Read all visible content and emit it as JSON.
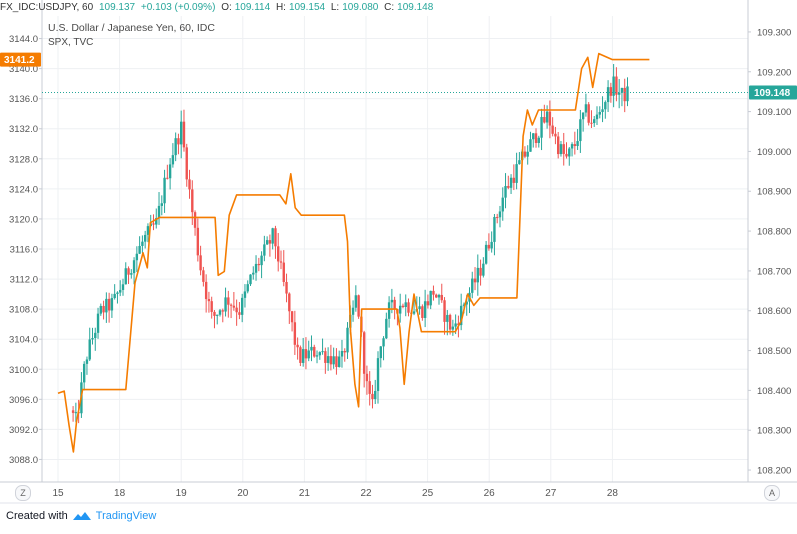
{
  "header": {
    "symbol": "FX_IDC:USDJPY, 60",
    "last": "109.137",
    "change": "+0.103 (+0.09%)",
    "o_label": "O:",
    "o_value": "109.114",
    "h_label": "H:",
    "h_value": "109.154",
    "l_label": "L:",
    "l_value": "109.080",
    "c_label": "C:",
    "c_value": "109.148"
  },
  "chart_title": "U.S. Dollar / Japanese Yen, 60, IDC",
  "chart_subtitle": "SPX, TVC",
  "footer": {
    "created_with": "Created with",
    "brand": "TradingView"
  },
  "controls": {
    "left_scale_button": "Z",
    "right_scale_button": "A"
  },
  "colors": {
    "up": "#26a69a",
    "down": "#ef5350",
    "spx_line": "#f57c00",
    "price_line": "#26a69a",
    "grid": "#eef0f3",
    "axis_text": "#555555"
  },
  "chart_data": {
    "type": "candlestick",
    "series": [
      {
        "name": "FX_IDC:USDJPY, 60",
        "axis": "right"
      },
      {
        "name": "SPX",
        "axis": "left"
      }
    ],
    "x_ticks": [
      "15",
      "18",
      "19",
      "20",
      "21",
      "22",
      "25",
      "26",
      "27",
      "28"
    ],
    "left_axis": {
      "ticks": [
        3088.0,
        3092.0,
        3096.0,
        3100.0,
        3104.0,
        3108.0,
        3112.0,
        3116.0,
        3120.0,
        3124.0,
        3128.0,
        3132.0,
        3136.0,
        3140.0,
        3144.0
      ],
      "range": [
        3085.0,
        3147.0
      ]
    },
    "right_axis": {
      "ticks": [
        108.2,
        108.3,
        108.4,
        108.5,
        108.6,
        108.7,
        108.8,
        108.9,
        109.0,
        109.1,
        109.2,
        109.3
      ],
      "range": [
        108.17,
        109.34
      ]
    },
    "left_last_label": "3141.2",
    "left_last_value": 3141.2,
    "right_last_label": "109.148",
    "right_last_value": 109.148,
    "spx_line": [
      {
        "x": 0.0,
        "y": 3096.8
      },
      {
        "x": 0.1,
        "y": 3097.1
      },
      {
        "x": 0.18,
        "y": 3092.5
      },
      {
        "x": 0.25,
        "y": 3089.0
      },
      {
        "x": 0.3,
        "y": 3093.0
      },
      {
        "x": 0.4,
        "y": 3097.3
      },
      {
        "x": 1.1,
        "y": 3097.3
      },
      {
        "x": 1.25,
        "y": 3111.5
      },
      {
        "x": 1.38,
        "y": 3115.5
      },
      {
        "x": 1.45,
        "y": 3113.5
      },
      {
        "x": 1.5,
        "y": 3119.5
      },
      {
        "x": 1.65,
        "y": 3120.2
      },
      {
        "x": 2.55,
        "y": 3120.2
      },
      {
        "x": 2.6,
        "y": 3112.5
      },
      {
        "x": 2.7,
        "y": 3113.0
      },
      {
        "x": 2.78,
        "y": 3120.5
      },
      {
        "x": 2.9,
        "y": 3123.2
      },
      {
        "x": 3.6,
        "y": 3123.2
      },
      {
        "x": 3.7,
        "y": 3122.0
      },
      {
        "x": 3.78,
        "y": 3126.0
      },
      {
        "x": 3.85,
        "y": 3121.5
      },
      {
        "x": 3.95,
        "y": 3120.5
      },
      {
        "x": 4.65,
        "y": 3120.5
      },
      {
        "x": 4.7,
        "y": 3117.0
      },
      {
        "x": 4.75,
        "y": 3105.0
      },
      {
        "x": 4.82,
        "y": 3098.0
      },
      {
        "x": 4.88,
        "y": 3095.0
      },
      {
        "x": 4.93,
        "y": 3108.0
      },
      {
        "x": 5.5,
        "y": 3108.0
      },
      {
        "x": 5.55,
        "y": 3105.5
      },
      {
        "x": 5.62,
        "y": 3098.0
      },
      {
        "x": 5.7,
        "y": 3105.0
      },
      {
        "x": 5.78,
        "y": 3110.0
      },
      {
        "x": 5.85,
        "y": 3107.0
      },
      {
        "x": 5.9,
        "y": 3105.0
      },
      {
        "x": 6.45,
        "y": 3105.0
      },
      {
        "x": 6.55,
        "y": 3106.5
      },
      {
        "x": 6.65,
        "y": 3110.0
      },
      {
        "x": 6.75,
        "y": 3108.5
      },
      {
        "x": 6.85,
        "y": 3109.5
      },
      {
        "x": 7.45,
        "y": 3109.5
      },
      {
        "x": 7.55,
        "y": 3131.0
      },
      {
        "x": 7.62,
        "y": 3134.5
      },
      {
        "x": 7.7,
        "y": 3132.5
      },
      {
        "x": 7.8,
        "y": 3134.5
      },
      {
        "x": 8.4,
        "y": 3134.5
      },
      {
        "x": 8.5,
        "y": 3140.0
      },
      {
        "x": 8.6,
        "y": 3141.5
      },
      {
        "x": 8.68,
        "y": 3137.5
      },
      {
        "x": 8.78,
        "y": 3142.0
      },
      {
        "x": 9.0,
        "y": 3141.2
      },
      {
        "x": 9.6,
        "y": 3141.2
      }
    ],
    "usdjpy_keypoints": [
      {
        "x": 0.2,
        "y": 108.35
      },
      {
        "x": 0.3,
        "y": 108.32
      },
      {
        "x": 0.45,
        "y": 108.48
      },
      {
        "x": 0.7,
        "y": 108.6
      },
      {
        "x": 0.9,
        "y": 108.62
      },
      {
        "x": 1.2,
        "y": 108.72
      },
      {
        "x": 1.4,
        "y": 108.78
      },
      {
        "x": 1.6,
        "y": 108.82
      },
      {
        "x": 1.8,
        "y": 108.97
      },
      {
        "x": 2.0,
        "y": 109.06
      },
      {
        "x": 2.15,
        "y": 108.88
      },
      {
        "x": 2.3,
        "y": 108.72
      },
      {
        "x": 2.5,
        "y": 108.58
      },
      {
        "x": 2.75,
        "y": 108.63
      },
      {
        "x": 2.95,
        "y": 108.6
      },
      {
        "x": 3.15,
        "y": 108.69
      },
      {
        "x": 3.5,
        "y": 108.79
      },
      {
        "x": 3.75,
        "y": 108.6
      },
      {
        "x": 3.9,
        "y": 108.48
      },
      {
        "x": 4.2,
        "y": 108.5
      },
      {
        "x": 4.6,
        "y": 108.47
      },
      {
        "x": 4.85,
        "y": 108.64
      },
      {
        "x": 5.0,
        "y": 108.42
      },
      {
        "x": 5.1,
        "y": 108.35
      },
      {
        "x": 5.2,
        "y": 108.48
      },
      {
        "x": 5.35,
        "y": 108.6
      },
      {
        "x": 5.6,
        "y": 108.62
      },
      {
        "x": 5.9,
        "y": 108.6
      },
      {
        "x": 6.1,
        "y": 108.65
      },
      {
        "x": 6.4,
        "y": 108.55
      },
      {
        "x": 6.6,
        "y": 108.62
      },
      {
        "x": 6.85,
        "y": 108.7
      },
      {
        "x": 7.05,
        "y": 108.8
      },
      {
        "x": 7.25,
        "y": 108.9
      },
      {
        "x": 7.5,
        "y": 108.97
      },
      {
        "x": 7.75,
        "y": 109.04
      },
      {
        "x": 7.95,
        "y": 109.09
      },
      {
        "x": 8.1,
        "y": 109.02
      },
      {
        "x": 8.25,
        "y": 108.98
      },
      {
        "x": 8.4,
        "y": 109.02
      },
      {
        "x": 8.55,
        "y": 109.1
      },
      {
        "x": 8.7,
        "y": 109.07
      },
      {
        "x": 8.85,
        "y": 109.12
      },
      {
        "x": 9.0,
        "y": 109.17
      },
      {
        "x": 9.15,
        "y": 109.14
      },
      {
        "x": 9.28,
        "y": 109.148
      }
    ]
  }
}
